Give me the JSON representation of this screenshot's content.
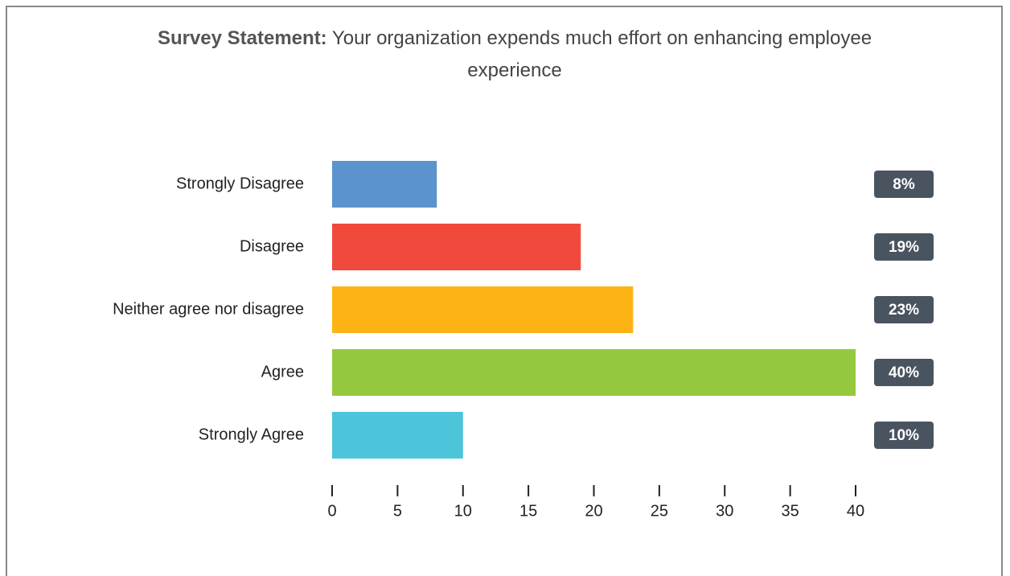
{
  "chart_data": {
    "type": "bar",
    "orientation": "horizontal",
    "title_label": "Survey Statement:",
    "title": "Your organization expends much effort on enhancing employee experience",
    "categories": [
      "Strongly Disagree",
      "Disagree",
      "Neither agree nor disagree",
      "Agree",
      "Strongly Agree"
    ],
    "values": [
      8,
      19,
      23,
      40,
      10
    ],
    "value_labels": [
      "8%",
      "19%",
      "23%",
      "40%",
      "10%"
    ],
    "colors": [
      "#5b93cd",
      "#f2493d",
      "#fdb316",
      "#95c93d",
      "#4cc4d9"
    ],
    "xlim": [
      0,
      40
    ],
    "xticks": [
      0,
      5,
      10,
      15,
      20,
      25,
      30,
      35,
      40
    ],
    "grid": false
  }
}
